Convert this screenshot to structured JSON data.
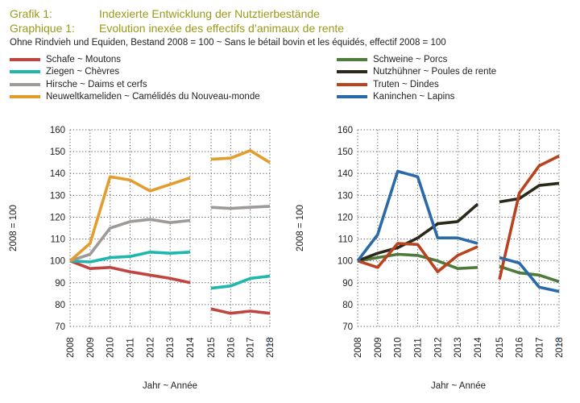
{
  "header": {
    "label_de": "Grafik 1:",
    "label_fr": "Graphique 1:",
    "title_de": "Indexierte Entwicklung der Nutztierbestände",
    "title_fr": "Evolution inexée des effectifs d’animaux de rente",
    "subtitle": "Ohne Rindvieh und Equiden, Bestand 2008 = 100   ~   Sans le bétail bovin et les équidés, effectif 2008 = 100"
  },
  "colors": {
    "title": "#9a9a1a",
    "grid": "#555555",
    "text": "#222222"
  },
  "chart_data": [
    {
      "type": "line",
      "xlabel": "Jahr  ~  Année",
      "ylabel": "2008 = 100",
      "ylim": [
        70,
        160
      ],
      "yticks": [
        70,
        80,
        90,
        100,
        110,
        120,
        130,
        140,
        150,
        160
      ],
      "categories": [
        "2008",
        "2009",
        "2010",
        "2011",
        "2012",
        "2013",
        "2014",
        "2015",
        "2016",
        "2017",
        "2018"
      ],
      "category_note": "* *",
      "break_after": "2014",
      "grid": true,
      "series": [
        {
          "name": "Schafe  ~  Moutons",
          "color": "#c0443f",
          "values": [
            100,
            96.5,
            97,
            95,
            93.5,
            92,
            90,
            78,
            76,
            77,
            76
          ]
        },
        {
          "name": "Ziegen  ~  Chèvres",
          "color": "#1eb7ad",
          "values": [
            100,
            99.5,
            101.5,
            102,
            104,
            103.5,
            104,
            87.5,
            88.5,
            92,
            93
          ]
        },
        {
          "name": "Hirsche  ~  Daims et cerfs",
          "color": "#9e9a98",
          "values": [
            100,
            103,
            115,
            118,
            119,
            117.5,
            118.5,
            124.5,
            124,
            124.5,
            125
          ]
        },
        {
          "name": "Neuweltkameliden  ~  Camélidés du Nouveau-monde",
          "color": "#e29d2c",
          "values": [
            100,
            108,
            138.5,
            137,
            132,
            135,
            138,
            146.5,
            147,
            150.5,
            145
          ]
        }
      ]
    },
    {
      "type": "line",
      "xlabel": "Jahr  ~  Année",
      "ylabel": "2008 = 100",
      "ylim": [
        70,
        160
      ],
      "yticks": [
        70,
        80,
        90,
        100,
        110,
        120,
        130,
        140,
        150,
        160
      ],
      "categories": [
        "2008",
        "2009",
        "2010",
        "2011",
        "2012",
        "2013",
        "2014",
        "2015",
        "2016",
        "2017",
        "2018"
      ],
      "category_note": "* *",
      "break_after": "2014",
      "grid": true,
      "series": [
        {
          "name": "Schweine  ~  Porcs",
          "color": "#4e7a3a",
          "values": [
            100,
            101.5,
            103,
            102.5,
            100,
            96.5,
            97,
            97.5,
            94.5,
            93.5,
            90.5
          ]
        },
        {
          "name": "Nutzhühner  ~  Poules de rente",
          "color": "#2b2a1a",
          "values": [
            100,
            103.5,
            106,
            110.5,
            117,
            118,
            126,
            127,
            128.5,
            134.5,
            135.5
          ]
        },
        {
          "name": "Truten  ~  Dindes",
          "color": "#b8431e",
          "values": [
            100,
            97,
            108,
            107.5,
            95,
            102.5,
            106.5,
            91.5,
            131,
            143.5,
            148
          ]
        },
        {
          "name": "Kaninchen  ~  Lapins",
          "color": "#2a6aa8",
          "values": [
            100,
            112,
            141,
            138.5,
            110.5,
            110.5,
            108,
            101.5,
            99,
            88,
            86
          ]
        }
      ]
    }
  ]
}
